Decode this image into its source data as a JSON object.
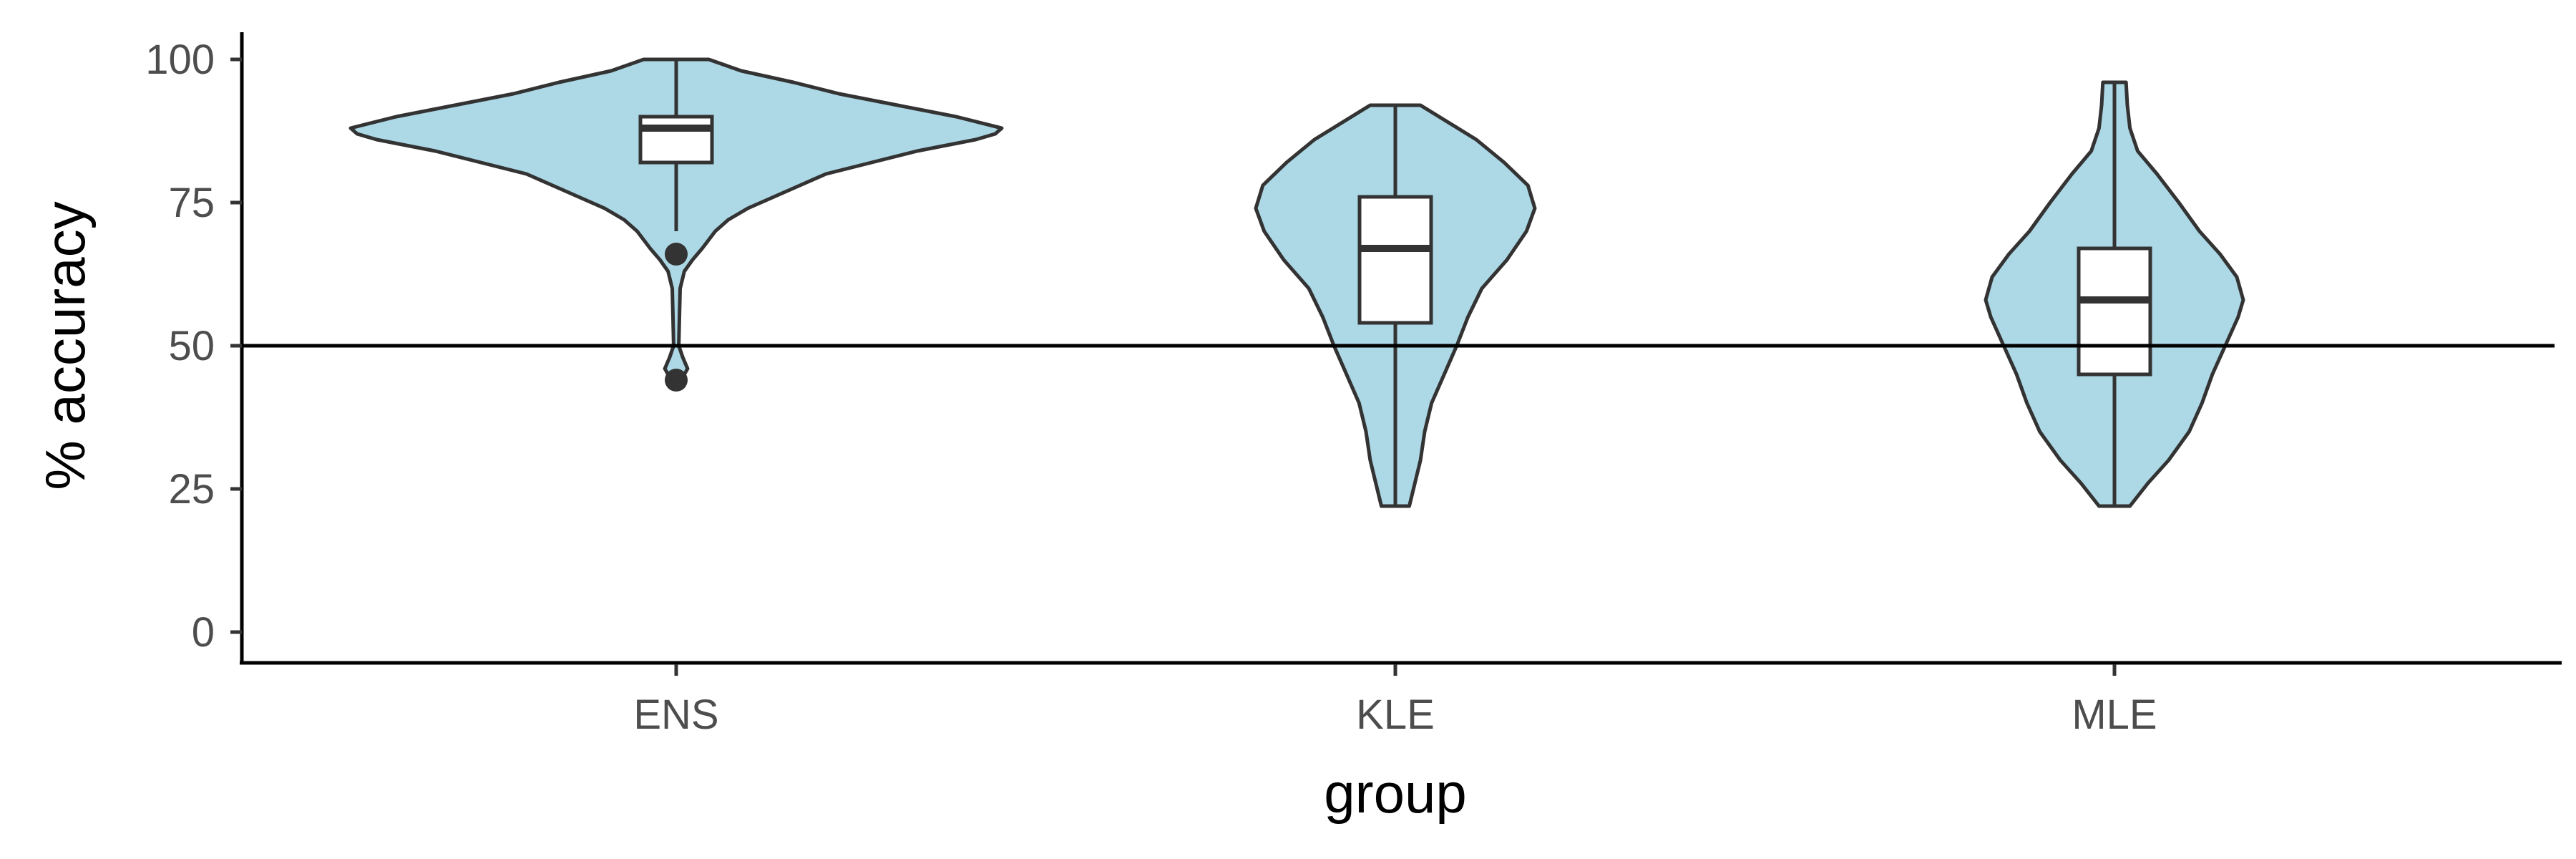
{
  "chart_data": {
    "type": "violin",
    "xlabel": "group",
    "ylabel": "% accuracy",
    "categories": [
      "ENS",
      "KLE",
      "MLE"
    ],
    "yticks": [
      0,
      25,
      50,
      75,
      100
    ],
    "ylim": [
      -5,
      105
    ],
    "reference_line": 50,
    "grid": false,
    "colors": {
      "violin_fill": "#add8e6",
      "outline": "#333333",
      "box_fill": "#ffffff",
      "axis": "#000000"
    },
    "groups": [
      {
        "name": "ENS",
        "box": {
          "min": 70,
          "q1": 82,
          "median": 88,
          "q3": 90,
          "max": 100
        },
        "outliers": [
          66,
          44
        ],
        "density": [
          [
            44,
            0.015
          ],
          [
            46,
            0.035
          ],
          [
            48,
            0.02
          ],
          [
            50,
            0.008
          ],
          [
            55,
            0.01
          ],
          [
            60,
            0.012
          ],
          [
            63,
            0.025
          ],
          [
            65,
            0.05
          ],
          [
            67,
            0.08
          ],
          [
            70,
            0.12
          ],
          [
            72,
            0.16
          ],
          [
            74,
            0.22
          ],
          [
            76,
            0.3
          ],
          [
            78,
            0.38
          ],
          [
            80,
            0.46
          ],
          [
            82,
            0.6
          ],
          [
            84,
            0.74
          ],
          [
            86,
            0.92
          ],
          [
            87,
            0.98
          ],
          [
            88,
            1.0
          ],
          [
            90,
            0.86
          ],
          [
            92,
            0.68
          ],
          [
            94,
            0.5
          ],
          [
            96,
            0.36
          ],
          [
            98,
            0.2
          ],
          [
            100,
            0.1
          ]
        ]
      },
      {
        "name": "KLE",
        "box": {
          "min": 22,
          "q1": 54,
          "median": 67,
          "q3": 76,
          "max": 92
        },
        "outliers": [],
        "density": [
          [
            22,
            0.1
          ],
          [
            26,
            0.14
          ],
          [
            30,
            0.18
          ],
          [
            35,
            0.21
          ],
          [
            40,
            0.26
          ],
          [
            45,
            0.35
          ],
          [
            50,
            0.44
          ],
          [
            55,
            0.52
          ],
          [
            60,
            0.62
          ],
          [
            65,
            0.8
          ],
          [
            70,
            0.94
          ],
          [
            74,
            1.0
          ],
          [
            78,
            0.95
          ],
          [
            82,
            0.78
          ],
          [
            86,
            0.58
          ],
          [
            89,
            0.38
          ],
          [
            92,
            0.18
          ]
        ]
      },
      {
        "name": "MLE",
        "box": {
          "min": 22,
          "q1": 45,
          "median": 58,
          "q3": 67,
          "max": 96
        },
        "outliers": [],
        "density": [
          [
            22,
            0.12
          ],
          [
            26,
            0.26
          ],
          [
            30,
            0.42
          ],
          [
            35,
            0.58
          ],
          [
            40,
            0.68
          ],
          [
            45,
            0.76
          ],
          [
            50,
            0.86
          ],
          [
            55,
            0.96
          ],
          [
            58,
            1.0
          ],
          [
            62,
            0.95
          ],
          [
            66,
            0.82
          ],
          [
            70,
            0.66
          ],
          [
            75,
            0.5
          ],
          [
            80,
            0.33
          ],
          [
            84,
            0.18
          ],
          [
            88,
            0.12
          ],
          [
            92,
            0.1
          ],
          [
            96,
            0.09
          ]
        ]
      }
    ]
  }
}
